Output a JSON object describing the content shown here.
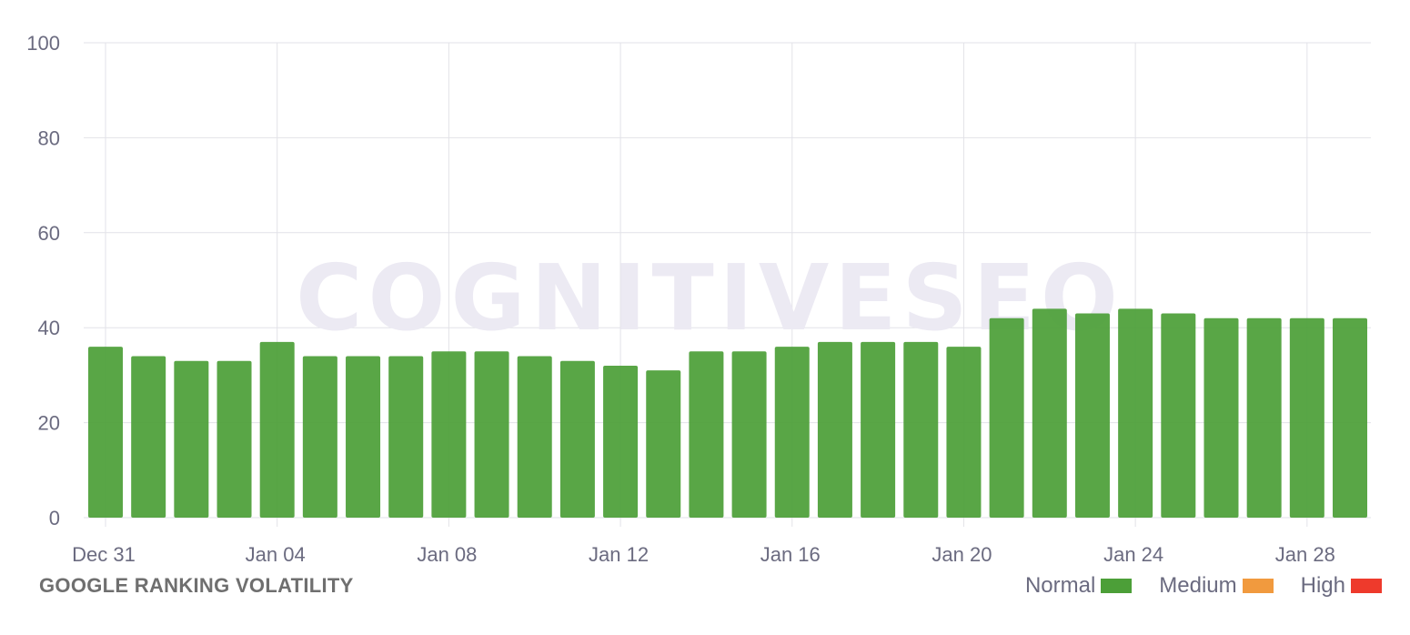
{
  "chart_data": {
    "type": "bar",
    "title": "GOOGLE RANKING VOLATILITY",
    "watermark": "COGNITIVESEO",
    "ylim": [
      0,
      100
    ],
    "yticks": [
      "0",
      "20",
      "40",
      "60",
      "80",
      "100"
    ],
    "categories": [
      "Dec 31",
      "Jan 01",
      "Jan 02",
      "Jan 03",
      "Jan 04",
      "Jan 05",
      "Jan 06",
      "Jan 07",
      "Jan 08",
      "Jan 09",
      "Jan 10",
      "Jan 11",
      "Jan 12",
      "Jan 13",
      "Jan 14",
      "Jan 15",
      "Jan 16",
      "Jan 17",
      "Jan 18",
      "Jan 19",
      "Jan 20",
      "Jan 21",
      "Jan 22",
      "Jan 23",
      "Jan 24",
      "Jan 25",
      "Jan 26",
      "Jan 27",
      "Jan 28",
      "Jan 29"
    ],
    "xtick_labels": [
      "Dec 31",
      "Jan 04",
      "Jan 08",
      "Jan 12",
      "Jan 16",
      "Jan 20",
      "Jan 24",
      "Jan 28"
    ],
    "values": [
      36,
      34,
      33,
      33,
      37,
      34,
      34,
      34,
      35,
      35,
      34,
      33,
      32,
      31,
      35,
      35,
      36,
      37,
      37,
      37,
      36,
      42,
      44,
      43,
      44,
      43,
      42,
      42,
      42,
      42
    ],
    "bar_color": "#4c9f38",
    "grid": true,
    "legend": {
      "placement": "bottom-right",
      "items": [
        {
          "label": "Normal",
          "color": "#4c9f38"
        },
        {
          "label": "Medium",
          "color": "#f19a3e"
        },
        {
          "label": "High",
          "color": "#ee3a2c"
        }
      ]
    }
  }
}
